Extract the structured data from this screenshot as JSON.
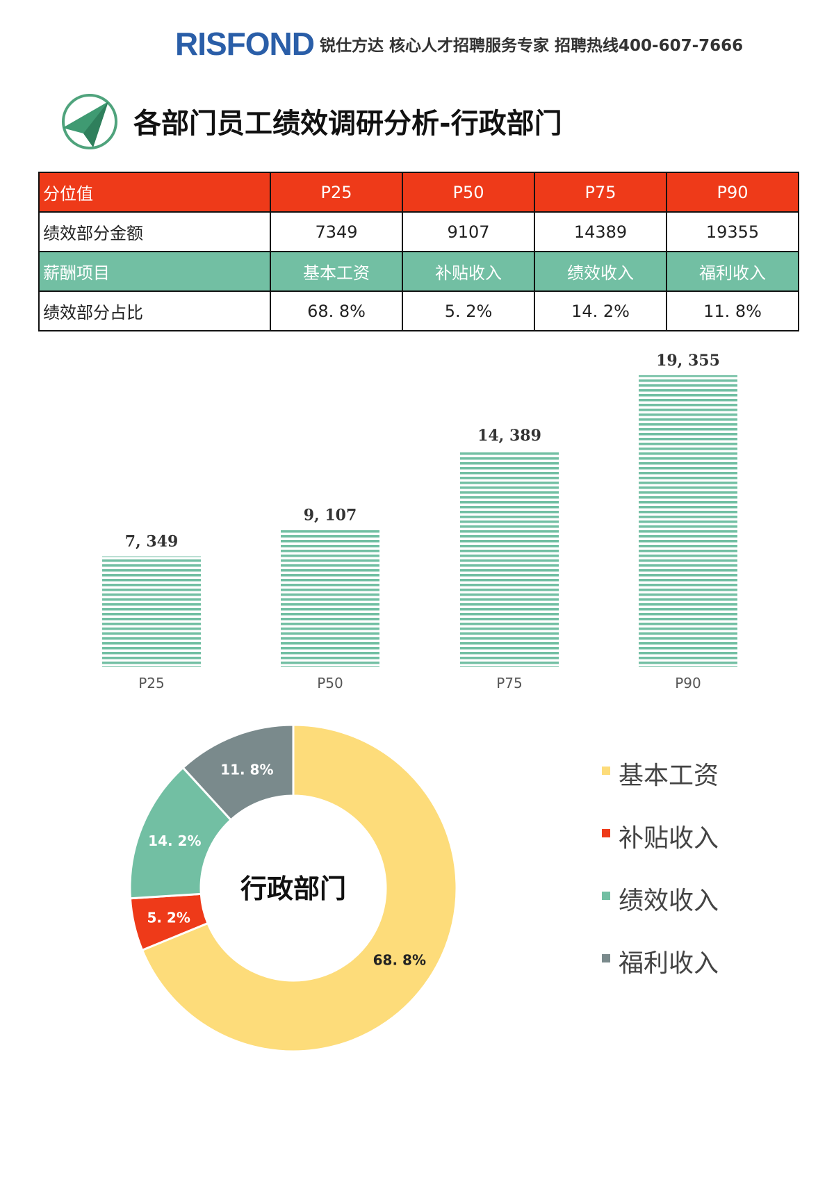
{
  "header": {
    "logo_text": "RISFOND",
    "tagline": "锐仕方达 核心人才招聘服务专家 招聘热线400-607-7666"
  },
  "page_title": "各部门员工绩效调研分析-行政部门",
  "table": {
    "row1": {
      "label": "分位值",
      "cells": [
        "P25",
        "P50",
        "P75",
        "P90"
      ]
    },
    "row2": {
      "label": "绩效部分金额",
      "cells": [
        "7349",
        "9107",
        "14389",
        "19355"
      ]
    },
    "row3": {
      "label": "薪酬项目",
      "cells": [
        "基本工资",
        "补贴收入",
        "绩效收入",
        "福利收入"
      ]
    },
    "row4": {
      "label": "绩效部分占比",
      "cells": [
        "68. 8%",
        "5. 2%",
        "14. 2%",
        "11. 8%"
      ]
    }
  },
  "colors": {
    "red": "#ee3a19",
    "green": "#72bfa3",
    "yellow": "#fddc7a",
    "gray": "#7a8a8c"
  },
  "chart_data": [
    {
      "type": "bar",
      "categories": [
        "P25",
        "P50",
        "P75",
        "P90"
      ],
      "values": [
        7349,
        9107,
        14389,
        19355
      ],
      "value_labels": [
        "7, 349",
        "9, 107",
        "14, 389",
        "19, 355"
      ],
      "title": "",
      "xlabel": "",
      "ylabel": "",
      "ylim": [
        0,
        19355
      ],
      "bar_color": "#72bfa3",
      "bar_fill": "horizontal-stripes",
      "grid": false
    },
    {
      "type": "pie",
      "style": "donut",
      "center_label": "行政部门",
      "slices": [
        {
          "name": "基本工资",
          "value": 68.8,
          "label": "68. 8%",
          "color": "#fddc7a"
        },
        {
          "name": "补贴收入",
          "value": 5.2,
          "label": "5. 2%",
          "color": "#ee3a19"
        },
        {
          "name": "绩效收入",
          "value": 14.2,
          "label": "14. 2%",
          "color": "#72bfa3"
        },
        {
          "name": "福利收入",
          "value": 11.8,
          "label": "11. 8%",
          "color": "#7a8a8c"
        }
      ],
      "legend_position": "right"
    }
  ]
}
